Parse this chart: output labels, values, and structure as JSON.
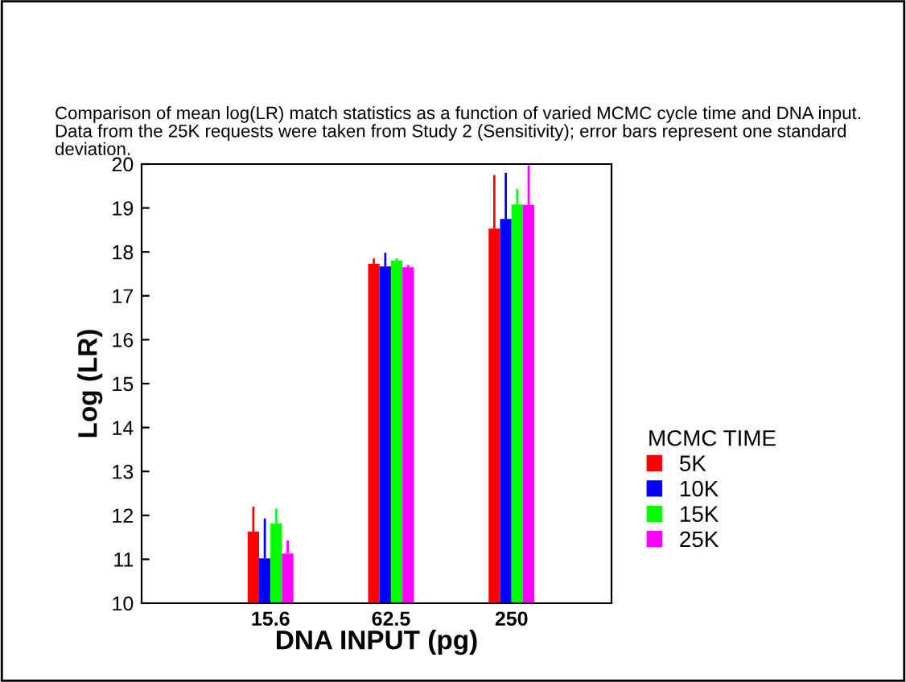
{
  "chart_data": {
    "type": "bar",
    "title": "Comparison of mean log(LR) match statistics as a function of varied MCMC cycle time and DNA input.  Data from the 25K requests were taken from Study 2 (Sensitivity); error bars represent one standard deviation.",
    "xlabel": "DNA INPUT (pg)",
    "ylabel": "Log (LR)",
    "legend_title": "MCMC TIME",
    "categories": [
      "15.6",
      "62.5",
      "250"
    ],
    "series": [
      {
        "name": "5K",
        "color": "#ff0000",
        "values": [
          11.63,
          17.73,
          18.53
        ],
        "errors": [
          [
            11.63,
            12.2
          ],
          [
            17.73,
            17.85
          ],
          [
            18.53,
            19.75
          ]
        ]
      },
      {
        "name": "10K",
        "color": "#0000ff",
        "values": [
          11.02,
          17.67,
          18.75
        ],
        "errors": [
          [
            11.02,
            11.93
          ],
          [
            17.67,
            17.98
          ],
          [
            18.75,
            19.8
          ]
        ]
      },
      {
        "name": "15K",
        "color": "#00ff00",
        "values": [
          11.82,
          17.8,
          19.08
        ],
        "errors": [
          [
            11.82,
            12.15
          ],
          [
            17.8,
            17.85
          ],
          [
            19.08,
            19.43
          ]
        ]
      },
      {
        "name": "25K",
        "color": "#ff00ff",
        "values": [
          11.13,
          17.65,
          19.07
        ],
        "errors": [
          [
            11.13,
            11.43
          ],
          [
            17.65,
            17.7
          ],
          [
            19.07,
            19.97
          ]
        ]
      }
    ],
    "ylim": [
      10,
      20
    ],
    "yticks": [
      10,
      11,
      12,
      13,
      14,
      15,
      16,
      17,
      18,
      19,
      20
    ],
    "grid": false,
    "legend": "right"
  }
}
